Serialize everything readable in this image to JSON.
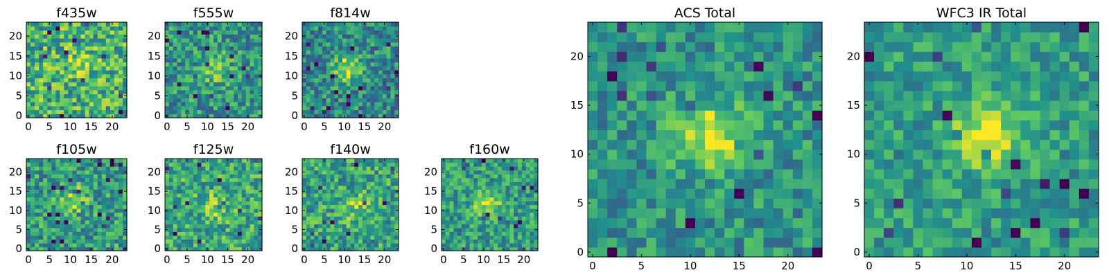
{
  "figure": {
    "description_note": "",
    "colormap": [
      "#440154",
      "#3b528b",
      "#21918c",
      "#5ec962",
      "#fde725"
    ]
  },
  "panels": [
    {
      "id": "f435w",
      "title": "f435w",
      "size": 24,
      "center": [
        12,
        14
      ],
      "peak": 0.15,
      "noise": 0.38,
      "base": 0.64,
      "xticks": [
        "0",
        "5",
        "10",
        "15",
        "20"
      ],
      "yticks": [
        "0",
        "5",
        "10",
        "15",
        "20"
      ]
    },
    {
      "id": "f555w",
      "title": "f555w",
      "size": 24,
      "center": [
        12,
        12
      ],
      "peak": 0.35,
      "noise": 0.33,
      "base": 0.52,
      "xticks": [
        "0",
        "5",
        "10",
        "15",
        "20"
      ],
      "yticks": [
        "0",
        "5",
        "10",
        "15",
        "20"
      ]
    },
    {
      "id": "f814w",
      "title": "f814w",
      "size": 24,
      "center": [
        11,
        12
      ],
      "peak": 0.4,
      "noise": 0.33,
      "base": 0.48,
      "xticks": [
        "0",
        "5",
        "10",
        "15",
        "20"
      ],
      "yticks": [
        "0",
        "5",
        "10",
        "15",
        "20"
      ]
    },
    {
      "id": "f105w",
      "title": "f105w",
      "size": 24,
      "center": [
        11,
        13
      ],
      "peak": 0.3,
      "noise": 0.33,
      "base": 0.55,
      "xticks": [
        "0",
        "5",
        "10",
        "15",
        "20"
      ],
      "yticks": [
        "0",
        "5",
        "10",
        "15",
        "20"
      ]
    },
    {
      "id": "f125w",
      "title": "f125w",
      "size": 24,
      "center": [
        12,
        11
      ],
      "peak": 0.25,
      "noise": 0.33,
      "base": 0.6,
      "xticks": [
        "0",
        "5",
        "10",
        "15",
        "20"
      ],
      "yticks": [
        "0",
        "5",
        "10",
        "15",
        "20"
      ]
    },
    {
      "id": "f140w",
      "title": "f140w",
      "size": 24,
      "center": [
        13,
        11
      ],
      "peak": 0.25,
      "noise": 0.33,
      "base": 0.58,
      "xticks": [
        "0",
        "5",
        "10",
        "15",
        "20"
      ],
      "yticks": [
        "0",
        "5",
        "10",
        "15",
        "20"
      ]
    },
    {
      "id": "f160w",
      "title": "f160w",
      "size": 24,
      "center": [
        11,
        12
      ],
      "peak": 0.35,
      "noise": 0.3,
      "base": 0.55,
      "xticks": [
        "0",
        "5",
        "10",
        "15",
        "20"
      ],
      "yticks": [
        "0",
        "5",
        "10",
        "15",
        "20"
      ]
    },
    {
      "id": "acs_total",
      "title": "ACS Total",
      "size": 24,
      "center": [
        12,
        12
      ],
      "peak": 0.45,
      "noise": 0.26,
      "base": 0.52,
      "xticks": [
        "0",
        "5",
        "10",
        "15",
        "20"
      ],
      "yticks": [
        "0",
        "5",
        "10",
        "15",
        "20"
      ]
    },
    {
      "id": "wfc3_ir_total",
      "title": "WFC3 IR Total",
      "size": 24,
      "center": [
        12,
        12
      ],
      "peak": 0.42,
      "noise": 0.24,
      "base": 0.55,
      "xticks": [
        "0",
        "5",
        "10",
        "15",
        "20"
      ],
      "yticks": [
        "0",
        "5",
        "10",
        "15",
        "20"
      ]
    }
  ]
}
